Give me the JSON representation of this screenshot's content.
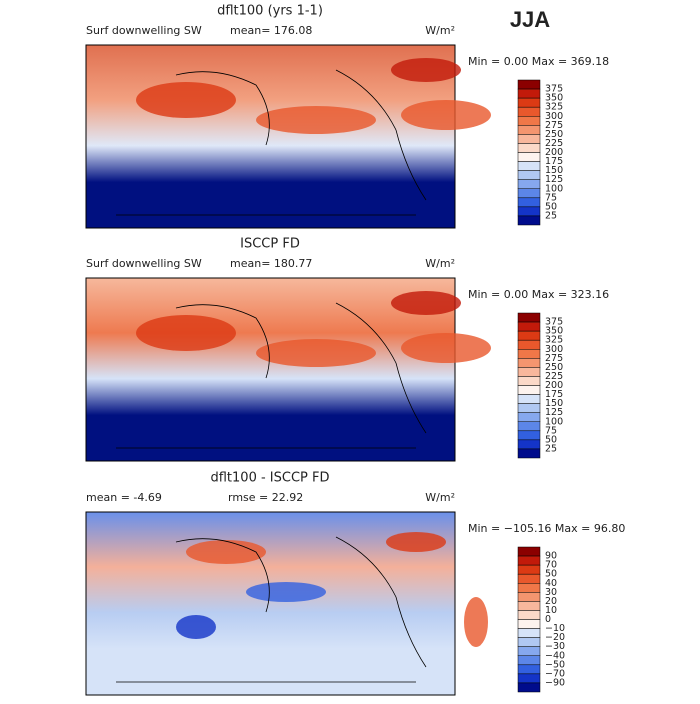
{
  "header": {
    "season": "JJA"
  },
  "panels": [
    {
      "title": "dflt100 (yrs 1-1)",
      "left_label": "Surf downwelling SW",
      "stat_label": "mean= 176.08",
      "units": "W/m²",
      "range_label": "Min =    0.00 Max = 369.18",
      "colorbar": {
        "labels": [
          "375",
          "350",
          "325",
          "300",
          "275",
          "250",
          "225",
          "200",
          "175",
          "150",
          "125",
          "100",
          "75",
          "50",
          "25"
        ],
        "colors": [
          "#8b0000",
          "#c21a0a",
          "#dc3a14",
          "#e9582c",
          "#f07748",
          "#f4956f",
          "#f8b79c",
          "#fbd9c8",
          "#fdf3ee",
          "#d6e3f8",
          "#b0c8f2",
          "#86a8ee",
          "#5c86e8",
          "#3260e0",
          "#1434c8",
          "#000c8c"
        ]
      },
      "map": {
        "top": "#e07050",
        "mid": "#f2a080",
        "low": "#dfe8f8",
        "bottom": "#001080"
      }
    },
    {
      "title": "ISCCP FD",
      "left_label": "Surf downwelling SW",
      "stat_label": "mean= 180.77",
      "units": "W/m²",
      "range_label": "Min =    0.00 Max = 323.16",
      "colorbar": {
        "labels": [
          "375",
          "350",
          "325",
          "300",
          "275",
          "250",
          "225",
          "200",
          "175",
          "150",
          "125",
          "100",
          "75",
          "50",
          "25"
        ],
        "colors": [
          "#8b0000",
          "#c21a0a",
          "#dc3a14",
          "#e9582c",
          "#f07748",
          "#f4956f",
          "#f8b79c",
          "#fbd9c8",
          "#fdf3ee",
          "#d6e3f8",
          "#b0c8f2",
          "#86a8ee",
          "#5c86e8",
          "#3260e0",
          "#1434c8",
          "#000c8c"
        ]
      },
      "map": {
        "top": "#f6b89c",
        "mid": "#ee7a50",
        "low": "#d6e3f8",
        "bottom": "#001080"
      }
    },
    {
      "title": "dflt100 - ISCCP FD",
      "left_label": "mean =   -4.69",
      "stat_label": "rmse =  22.92",
      "units": "W/m²",
      "range_label": "Min = −105.16 Max =  96.80",
      "colorbar": {
        "labels": [
          "90",
          "70",
          "50",
          "40",
          "30",
          "20",
          "10",
          "0",
          "−10",
          "−20",
          "−30",
          "−40",
          "−50",
          "−70",
          "−90"
        ],
        "colors": [
          "#8b0000",
          "#c21a0a",
          "#dc3a14",
          "#e9582c",
          "#f07748",
          "#f4956f",
          "#f8b79c",
          "#fbd9c8",
          "#fdf3ee",
          "#d6e3f8",
          "#b0c8f2",
          "#86a8ee",
          "#5c86e8",
          "#3260e0",
          "#1434c8",
          "#000c8c"
        ]
      },
      "map": {
        "top": "#6a90ea",
        "mid": "#f4b09a",
        "low": "#b8cdf2",
        "bottom": "#d6e3f8"
      }
    }
  ]
}
